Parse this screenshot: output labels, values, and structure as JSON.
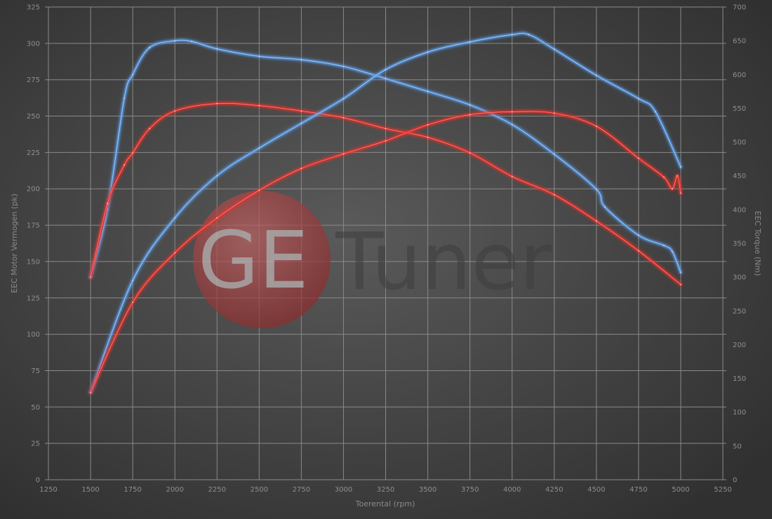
{
  "chart_data": {
    "type": "line",
    "title": "",
    "xlabel": "Toerental (rpm)",
    "ylabel_left": "EEC Motor Vermogen (pk)",
    "ylabel_right": "EEC Torque (Nm)",
    "xlim": [
      1250,
      5250
    ],
    "xticks": [
      1250,
      1500,
      1750,
      2000,
      2250,
      2500,
      2750,
      3000,
      3250,
      3500,
      3750,
      4000,
      4250,
      4500,
      4750,
      5000,
      5250
    ],
    "ylim_left": [
      0,
      325
    ],
    "yticks_left": [
      0,
      25,
      50,
      75,
      100,
      125,
      150,
      175,
      200,
      225,
      250,
      275,
      300,
      325
    ],
    "ylim_right": [
      0,
      700
    ],
    "yticks_right": [
      0,
      50,
      100,
      150,
      200,
      250,
      300,
      350,
      400,
      450,
      500,
      550,
      600,
      650,
      700
    ],
    "grid": true,
    "legend": "none",
    "watermark": "GETuner",
    "colors": {
      "blue": "#5b9be6",
      "red": "#e8302a"
    },
    "series": [
      {
        "color": "blue",
        "axis": "right",
        "x": [
          1500,
          1600,
          1700,
          1750,
          1850,
          2000,
          2100,
          2250,
          2500,
          2750,
          3000,
          3250,
          3500,
          3750,
          4000,
          4250,
          4500,
          4550,
          4750,
          4900,
          4950,
          5000
        ],
        "y": [
          300,
          400,
          565,
          600,
          640,
          650,
          649,
          638,
          627,
          622,
          612,
          594,
          575,
          555,
          526,
          482,
          430,
          404,
          362,
          347,
          338,
          307
        ]
      },
      {
        "color": "red",
        "axis": "right",
        "x": [
          1500,
          1600,
          1700,
          1750,
          1850,
          2000,
          2250,
          2500,
          2750,
          3000,
          3250,
          3500,
          3750,
          4000,
          4250,
          4500,
          4750,
          5000
        ],
        "y": [
          300,
          409,
          466,
          484,
          520,
          546,
          557,
          554,
          546,
          536,
          520,
          507,
          484,
          449,
          422,
          383,
          339,
          289
        ]
      },
      {
        "color": "blue",
        "axis": "left",
        "x": [
          1500,
          1750,
          2000,
          2250,
          2500,
          2750,
          3000,
          3250,
          3500,
          3750,
          4000,
          4100,
          4250,
          4500,
          4750,
          4850,
          5000
        ],
        "y": [
          60,
          137,
          180,
          209,
          228,
          245,
          262,
          282,
          294,
          301,
          306,
          306,
          296,
          278,
          262,
          253,
          215
        ]
      },
      {
        "color": "red",
        "axis": "left",
        "x": [
          1500,
          1750,
          2000,
          2250,
          2500,
          2750,
          3000,
          3250,
          3500,
          3750,
          4000,
          4250,
          4500,
          4750,
          4900,
          4950,
          4980,
          5000
        ],
        "y": [
          60,
          122,
          156,
          180,
          199,
          214,
          224,
          233,
          244,
          251,
          253,
          252,
          243,
          221,
          208,
          200,
          209,
          197
        ]
      }
    ]
  }
}
